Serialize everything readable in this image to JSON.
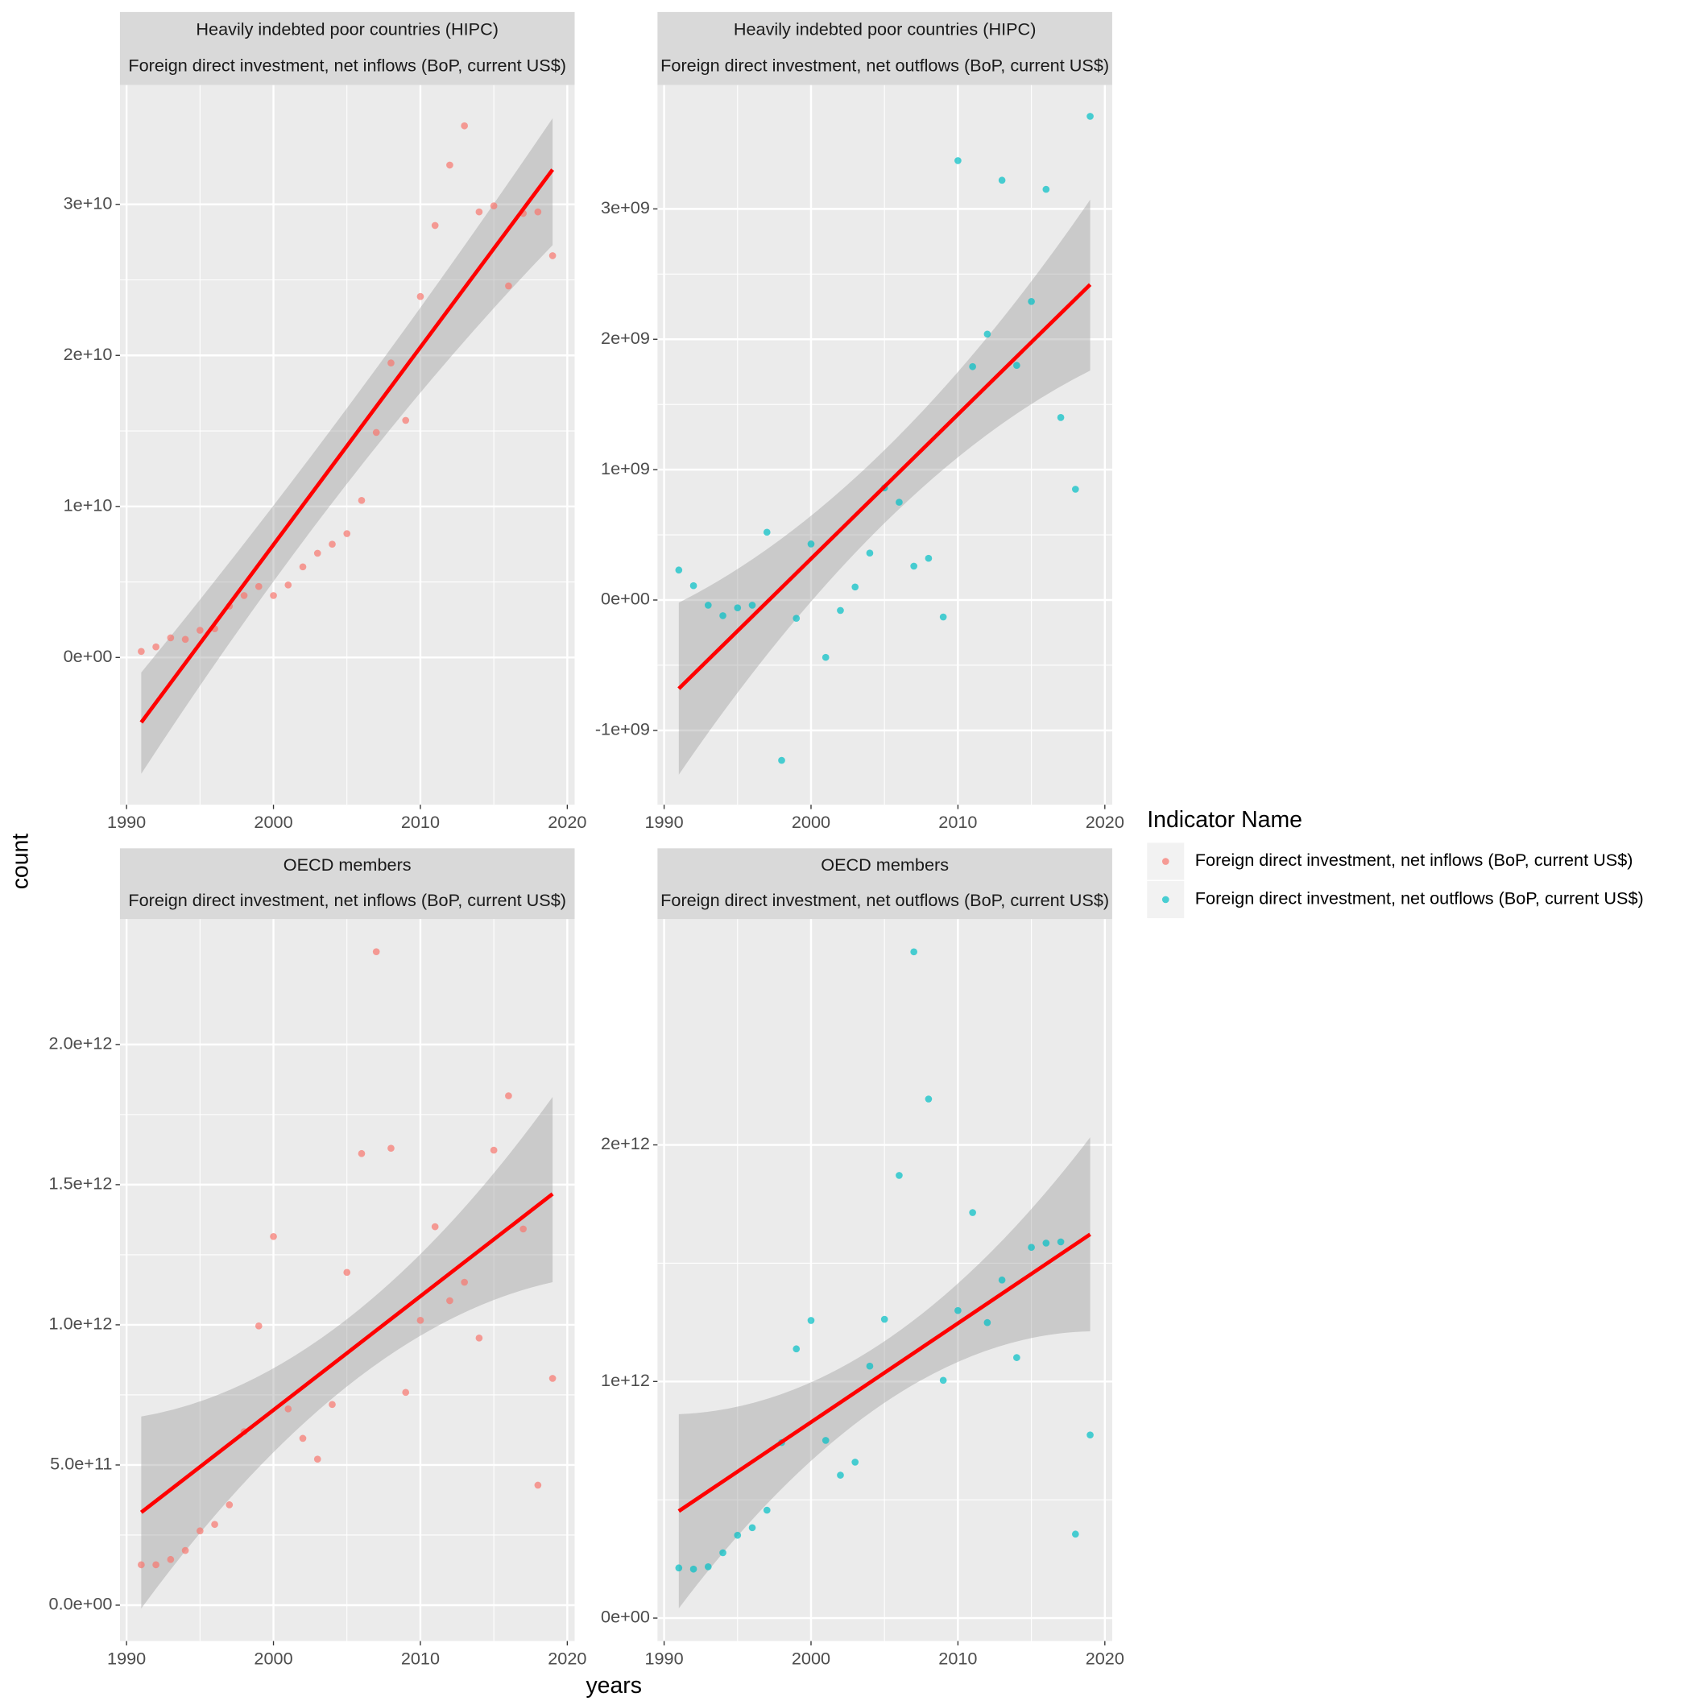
{
  "x_label": "years",
  "y_label": "count",
  "legend_title": "Indicator Name",
  "chart_data": [
    {
      "type": "scatter",
      "facet": "Heavily indebted poor countries (HIPC)",
      "x": [
        1991,
        1992,
        1993,
        1994,
        1995,
        1996,
        1997,
        1998,
        1999,
        2000,
        2001,
        2002,
        2003,
        2004,
        2005,
        2006,
        2007,
        2008,
        2009,
        2010,
        2011,
        2012,
        2013,
        2014,
        2015,
        2016,
        2017,
        2018,
        2019
      ],
      "series": [
        {
          "name": "Foreign direct investment, net inflows (BoP, current US$)",
          "color": "#F8766D",
          "values": [
            400000000.0,
            700000000.0,
            1300000000.0,
            1200000000.0,
            1800000000.0,
            1900000000.0,
            3400000000.0,
            4100000000.0,
            4700000000.0,
            4100000000.0,
            4800000000.0,
            6000000000.0,
            6900000000.0,
            7500000000.0,
            8200000000.0,
            10400000000.0,
            14900000000.0,
            19500000000.0,
            15700000000.0,
            23900000000.0,
            28600000000.0,
            32600000000.0,
            35200000000.0,
            29500000000.0,
            29900000000.0,
            24600000000.0,
            29400000000.0,
            29500000000.0,
            26600000000.0
          ]
        }
      ],
      "fit": {
        "color": "#FF0000",
        "x": [
          1991,
          2005,
          2019
        ],
        "values": [
          -4300000000.0,
          14000000000.0,
          32300000000.0
        ],
        "lower": [
          -7700000000.0,
          11500000000.0,
          27300000000.0
        ],
        "upper": [
          -1000000000.0,
          16500000000.0,
          35700000000.0
        ]
      },
      "xlim": [
        1989.55,
        2020.5
      ],
      "xticks": [
        1990,
        2000,
        2010,
        2020
      ],
      "ylim": [
        -9750000000.0,
        37900000000.0
      ],
      "yticks": [
        {
          "value": 0,
          "label": "0e+00"
        },
        {
          "value": 10000000000.0,
          "label": "1e+10"
        },
        {
          "value": 20000000000.0,
          "label": "2e+10"
        },
        {
          "value": 30000000000.0,
          "label": "3e+10"
        }
      ],
      "grid": true
    },
    {
      "type": "scatter",
      "facet": "Heavily indebted poor countries (HIPC)",
      "x": [
        1991,
        1992,
        1993,
        1994,
        1995,
        1996,
        1997,
        1998,
        1999,
        2000,
        2001,
        2002,
        2003,
        2004,
        2005,
        2006,
        2007,
        2008,
        2009,
        2010,
        2011,
        2012,
        2013,
        2014,
        2015,
        2016,
        2017,
        2018,
        2019
      ],
      "series": [
        {
          "name": "Foreign direct investment, net outflows (BoP, current US$)",
          "color": "#00BFC4",
          "values": [
            230000000.0,
            110000000.0,
            -40000000.0,
            -120000000.0,
            -60000000.0,
            -40000000.0,
            520000000.0,
            -1230000000.0,
            -140000000.0,
            430000000.0,
            -440000000.0,
            -80000000.0,
            100000000.0,
            360000000.0,
            860000000.0,
            750000000.0,
            260000000.0,
            320000000.0,
            -130000000.0,
            3370000000.0,
            1790000000.0,
            2040000000.0,
            3220000000.0,
            1800000000.0,
            2290000000.0,
            3150000000.0,
            1400000000.0,
            850000000.0,
            3710000000.0
          ]
        }
      ],
      "fit": {
        "color": "#FF0000",
        "x": [
          1991,
          2005,
          2019
        ],
        "values": [
          -680000000.0,
          870000000.0,
          2420000000.0
        ],
        "lower": [
          -1340000000.0,
          590000000.0,
          1760000000.0
        ],
        "upper": [
          -20000000.0,
          1150000000.0,
          3070000000.0
        ]
      },
      "xlim": [
        1989.55,
        2020.5
      ],
      "xticks": [
        1990,
        2000,
        2010,
        2020
      ],
      "ylim": [
        -1570000000.0,
        3950000000.0
      ],
      "yticks": [
        {
          "value": -1000000000.0,
          "label": "-1e+09"
        },
        {
          "value": 0,
          "label": "0e+00"
        },
        {
          "value": 1000000000.0,
          "label": "1e+09"
        },
        {
          "value": 2000000000.0,
          "label": "2e+09"
        },
        {
          "value": 3000000000.0,
          "label": "3e+09"
        }
      ],
      "grid": true
    },
    {
      "type": "scatter",
      "facet": "OECD members",
      "x": [
        1991,
        1992,
        1993,
        1994,
        1995,
        1996,
        1997,
        1998,
        1999,
        2000,
        2001,
        2002,
        2003,
        2004,
        2005,
        2006,
        2007,
        2008,
        2009,
        2010,
        2011,
        2012,
        2013,
        2014,
        2015,
        2016,
        2017,
        2018,
        2019
      ],
      "series": [
        {
          "name": "Foreign direct investment, net inflows (BoP, current US$)",
          "color": "#F8766D",
          "values": [
            144000000000.0,
            144000000000.0,
            163000000000.0,
            195000000000.0,
            265000000000.0,
            288000000000.0,
            358000000000.0,
            619000000000.0,
            996000000000.0,
            1315000000000.0,
            700000000000.0,
            595000000000.0,
            521000000000.0,
            716000000000.0,
            1187000000000.0,
            1611000000000.0,
            2331000000000.0,
            1630000000000.0,
            759000000000.0,
            1016000000000.0,
            1350000000000.0,
            1086000000000.0,
            1152000000000.0,
            953000000000.0,
            1623000000000.0,
            1817000000000.0,
            1342000000000.0,
            428000000000.0,
            809000000000.0
          ]
        }
      ],
      "fit": {
        "color": "#FF0000",
        "x": [
          1991,
          2005,
          2019
        ],
        "values": [
          331000000000.0,
          899000000000.0,
          1467000000000.0
        ],
        "lower": [
          -12000000000.0,
          780000000000.0,
          1152000000000.0
        ],
        "upper": [
          673000000000.0,
          1020000000000.0,
          1813000000000.0
        ]
      },
      "xlim": [
        1989.55,
        2020.5
      ],
      "xticks": [
        1990,
        2000,
        2010,
        2020
      ],
      "ylim": [
        -128000000000.0,
        2447000000000.0
      ],
      "yticks": [
        {
          "value": 0,
          "label": "0.0e+00"
        },
        {
          "value": 500000000000.0,
          "label": "5.0e+11"
        },
        {
          "value": 1000000000000.0,
          "label": "1.0e+12"
        },
        {
          "value": 1500000000000.0,
          "label": "1.5e+12"
        },
        {
          "value": 2000000000000.0,
          "label": "2.0e+12"
        }
      ],
      "grid": true
    },
    {
      "type": "scatter",
      "facet": "OECD members",
      "x": [
        1991,
        1992,
        1993,
        1994,
        1995,
        1996,
        1997,
        1998,
        1999,
        2000,
        2001,
        2002,
        2003,
        2004,
        2005,
        2006,
        2007,
        2008,
        2009,
        2010,
        2011,
        2012,
        2013,
        2014,
        2015,
        2016,
        2017,
        2018,
        2019
      ],
      "series": [
        {
          "name": "Foreign direct investment, net outflows (BoP, current US$)",
          "color": "#00BFC4",
          "values": [
            212000000000.0,
            207000000000.0,
            217000000000.0,
            276000000000.0,
            350000000000.0,
            382000000000.0,
            456000000000.0,
            742000000000.0,
            1138000000000.0,
            1258000000000.0,
            751000000000.0,
            604000000000.0,
            659000000000.0,
            1065000000000.0,
            1263000000000.0,
            1871000000000.0,
            2816000000000.0,
            2194000000000.0,
            1005000000000.0,
            1300000000000.0,
            1714000000000.0,
            1249000000000.0,
            1429000000000.0,
            1101000000000.0,
            1567000000000.0,
            1585000000000.0,
            1590000000000.0,
            355000000000.0,
            774000000000.0
          ]
        }
      ],
      "fit": {
        "color": "#FF0000",
        "x": [
          1991,
          2005,
          2019
        ],
        "values": [
          452000000000.0,
          1037000000000.0,
          1622000000000.0
        ],
        "lower": [
          41000000000.0,
          910000000000.0,
          1212000000000.0
        ],
        "upper": [
          862000000000.0,
          1170000000000.0,
          2032000000000.0
        ]
      },
      "xlim": [
        1989.55,
        2020.5
      ],
      "xticks": [
        1990,
        2000,
        2010,
        2020
      ],
      "ylim": [
        -97000000000.0,
        2954000000000.0
      ],
      "yticks": [
        {
          "value": 0,
          "label": "0e+00"
        },
        {
          "value": 1000000000000.0,
          "label": "1e+12"
        },
        {
          "value": 2000000000000.0,
          "label": "2e+12"
        }
      ],
      "grid": true
    }
  ]
}
